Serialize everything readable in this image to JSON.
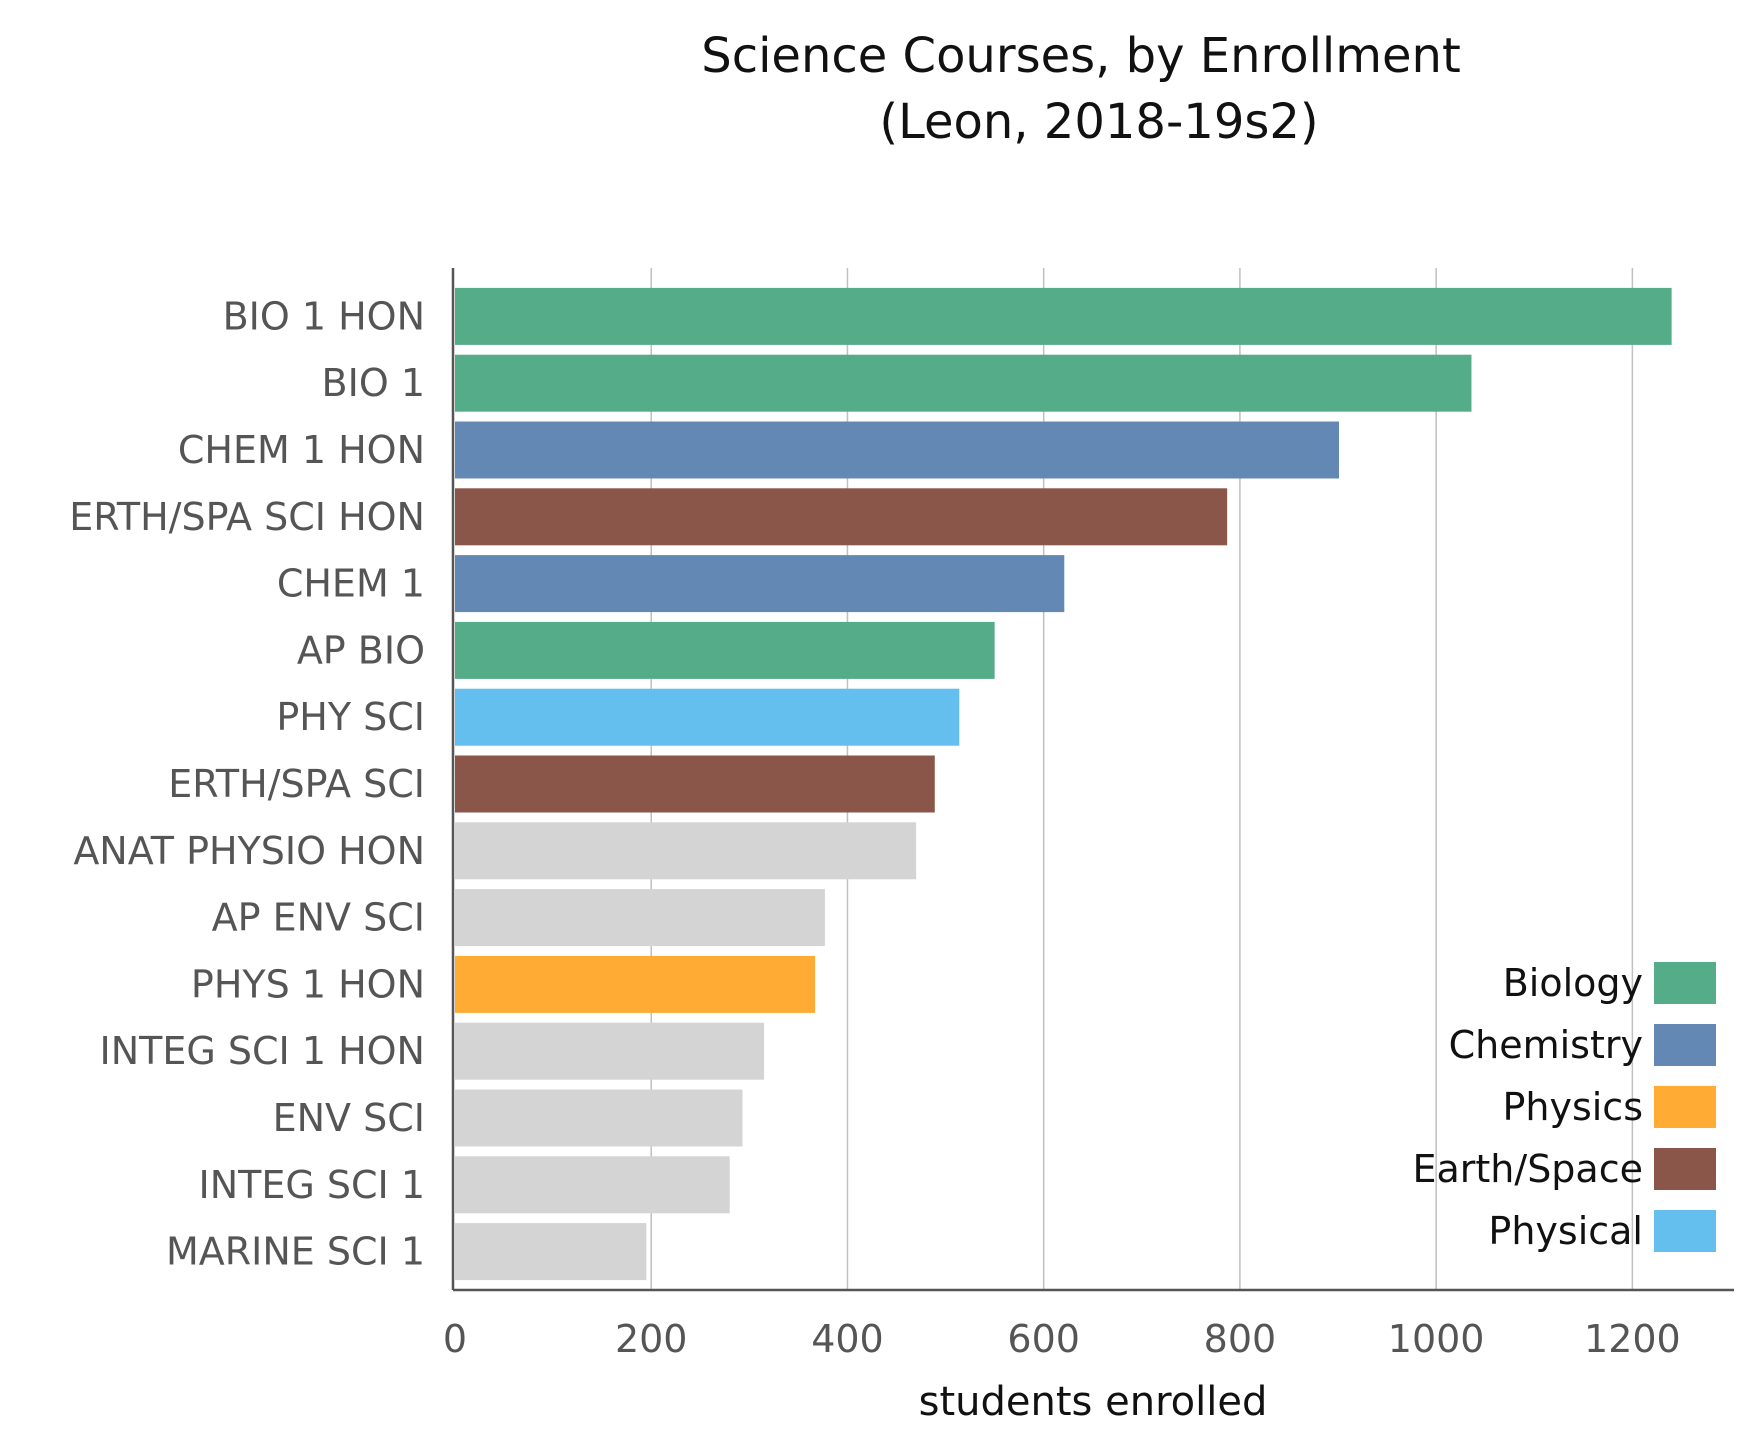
{
  "chart_data": {
    "type": "bar",
    "orientation": "horizontal",
    "title": [
      "Science Courses, by Enrollment",
      "(Leon, 2018-19s2)"
    ],
    "xlabel": "students enrolled",
    "ylabel": "",
    "xlim": [
      0,
      1300
    ],
    "xticks": [
      0,
      200,
      400,
      600,
      800,
      1000,
      1200
    ],
    "grid": "vertical",
    "legend_position": "bottom-right",
    "categories": [
      "BIO 1 HON",
      "BIO 1",
      "CHEM 1 HON",
      "ERTH/SPA SCI HON",
      "CHEM 1",
      "AP BIO",
      "PHY SCI",
      "ERTH/SPA SCI",
      "ANAT PHYSIO HON",
      "AP ENV SCI",
      "PHYS 1 HON",
      "INTEG SCI 1 HON",
      "ENV SCI",
      "INTEG SCI 1",
      "MARINE SCI 1"
    ],
    "values": [
      1240,
      1036,
      901,
      787,
      621,
      550,
      514,
      489,
      470,
      377,
      367,
      315,
      293,
      280,
      195
    ],
    "groups": [
      "Biology",
      "Biology",
      "Chemistry",
      "Earth/Space",
      "Chemistry",
      "Biology",
      "Physical",
      "Earth/Space",
      "",
      "",
      "Physics",
      "",
      "",
      "",
      ""
    ],
    "legend": [
      {
        "name": "Biology",
        "color": "#55ac88"
      },
      {
        "name": "Chemistry",
        "color": "#6488b4"
      },
      {
        "name": "Physics",
        "color": "#ffab34"
      },
      {
        "name": "Earth/Space",
        "color": "#8a564a"
      },
      {
        "name": "Physical",
        "color": "#64bfee"
      }
    ],
    "other_color": "#d4d4d4"
  }
}
